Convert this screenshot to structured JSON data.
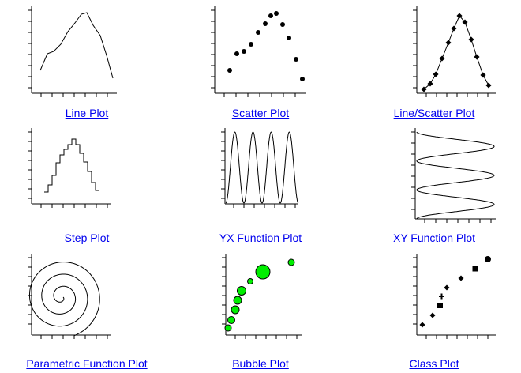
{
  "gallery": {
    "items": [
      {
        "id": "line",
        "label": "Line Plot"
      },
      {
        "id": "scatter",
        "label": "Scatter Plot"
      },
      {
        "id": "linescatter",
        "label": "Line/Scatter Plot"
      },
      {
        "id": "step",
        "label": "Step Plot"
      },
      {
        "id": "yxfunc",
        "label": "YX Function Plot"
      },
      {
        "id": "xyfunc",
        "label": "XY Function Plot"
      },
      {
        "id": "parametric",
        "label": "Parametric Function Plot"
      },
      {
        "id": "bubble",
        "label": "Bubble Plot"
      },
      {
        "id": "class",
        "label": "Class Plot"
      }
    ]
  },
  "colors": {
    "link": "#0000ee",
    "bubble_fill": "#00ee00",
    "axis": "#000000"
  }
}
